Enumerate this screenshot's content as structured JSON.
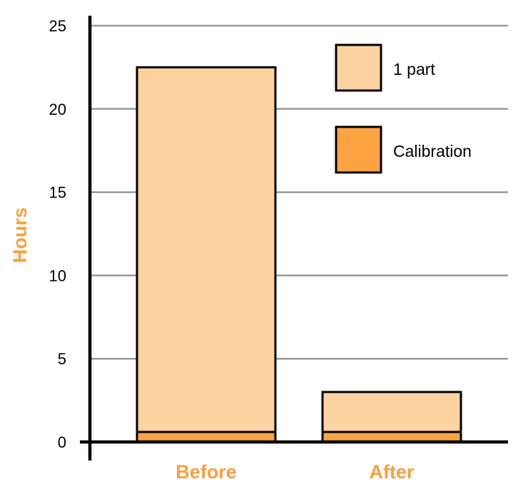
{
  "chart_data": {
    "type": "bar",
    "stacked": true,
    "categories": [
      "Before",
      "After"
    ],
    "series": [
      {
        "name": "Calibration",
        "values": [
          0.6,
          0.6
        ],
        "color": "#FBA441"
      },
      {
        "name": "1 part",
        "values": [
          21.9,
          2.4
        ],
        "color": "#FDD3A2"
      }
    ],
    "ylabel": "Hours",
    "xlabel": "",
    "ylim": [
      0,
      25
    ],
    "yticks": [
      "0",
      "5",
      "10",
      "15",
      "20",
      "25"
    ],
    "grid": true,
    "legend_position": "top-right",
    "legend_order": [
      "1 part",
      "Calibration"
    ],
    "colors": {
      "accent": "#F7A040",
      "grid": "#999999",
      "axis": "#000000"
    }
  }
}
